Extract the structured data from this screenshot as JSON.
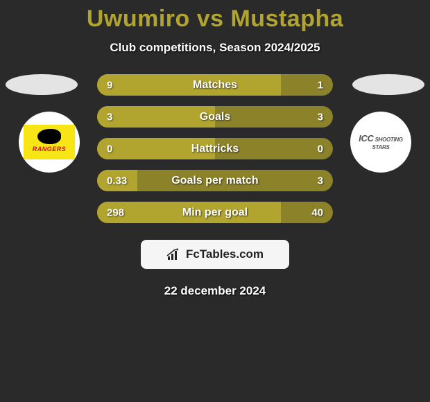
{
  "title": {
    "player1": "Uwumiro",
    "player2": "Mustapha",
    "color": "#b2a52f"
  },
  "subtitle": "Club competitions, Season 2024/2025",
  "club_left": {
    "label": "RANGERS",
    "bg": "#f7e516",
    "text_color": "#c9151a"
  },
  "club_right": {
    "label": "ICC SHOOTING STARS",
    "text_color": "#555"
  },
  "stats": {
    "bar_color_left": "#b2a52f",
    "bar_color_right": "#8c822a",
    "rows": [
      {
        "label": "Matches",
        "left_val": "9",
        "right_val": "1",
        "left_pct": 78,
        "right_pct": 22
      },
      {
        "label": "Goals",
        "left_val": "3",
        "right_val": "3",
        "left_pct": 50,
        "right_pct": 50
      },
      {
        "label": "Hattricks",
        "left_val": "0",
        "right_val": "0",
        "left_pct": 50,
        "right_pct": 50
      },
      {
        "label": "Goals per match",
        "left_val": "0.33",
        "right_val": "3",
        "left_pct": 17,
        "right_pct": 83
      },
      {
        "label": "Min per goal",
        "left_val": "298",
        "right_val": "40",
        "left_pct": 78,
        "right_pct": 22
      }
    ]
  },
  "brand": "FcTables.com",
  "date": "22 december 2024",
  "colors": {
    "background": "#2a2a2a",
    "title_accent": "#b2a52f"
  }
}
